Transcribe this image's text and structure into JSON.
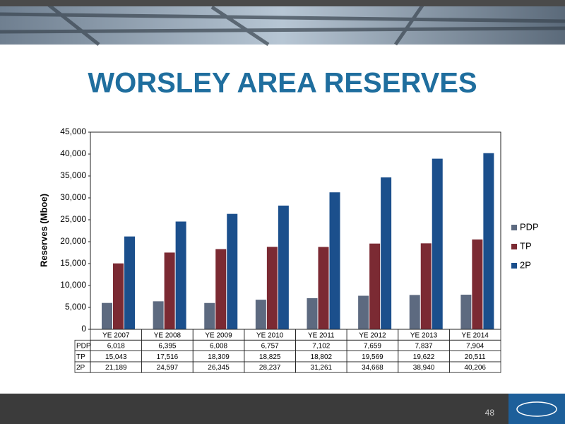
{
  "chart_data": {
    "type": "bar",
    "title": "WORSLEY AREA RESERVES",
    "y_label": "Reserves (Mboe)",
    "categories": [
      "YE 2007",
      "YE 2008",
      "YE 2009",
      "YE 2010",
      "YE 2011",
      "YE 2012",
      "YE 2013",
      "YE 2014"
    ],
    "series": [
      {
        "name": "PDP",
        "color": "#5d6a80",
        "values": [
          6018,
          6395,
          6008,
          6757,
          7102,
          7659,
          7837,
          7904
        ],
        "value_labels": [
          "6,018",
          "6,395",
          "6,008",
          "6,757",
          "7,102",
          "7,659",
          "7,837",
          "7,904"
        ]
      },
      {
        "name": "TP",
        "color": "#7b2a33",
        "values": [
          15043,
          17516,
          18309,
          18825,
          18802,
          19569,
          19622,
          20511
        ],
        "value_labels": [
          "15,043",
          "17,516",
          "18,309",
          "18,825",
          "18,802",
          "19,569",
          "19,622",
          "20,511"
        ]
      },
      {
        "name": "2P",
        "color": "#1b4f8c",
        "values": [
          21189,
          24597,
          26345,
          28237,
          31261,
          34668,
          38940,
          40206
        ],
        "value_labels": [
          "21,189",
          "24,597",
          "26,345",
          "28,237",
          "31,261",
          "34,668",
          "38,940",
          "40,206"
        ]
      }
    ],
    "ylim": [
      0,
      45000
    ],
    "yticks": [
      0,
      {
        "value": 5000,
        "label": "5,000"
      },
      {
        "value": 10000,
        "label": "10,000"
      },
      {
        "value": 15000,
        "label": "15,000"
      },
      {
        "value": 20000,
        "label": "20,000"
      },
      {
        "value": 25000,
        "label": "25,000"
      },
      {
        "value": 30000,
        "label": "30,000"
      },
      {
        "value": 35000,
        "label": "35,000"
      },
      {
        "value": 40000,
        "label": "40,000"
      },
      {
        "value": 45000,
        "label": "45,000"
      }
    ],
    "legend": "right",
    "data_table": true
  },
  "page_number": "48"
}
